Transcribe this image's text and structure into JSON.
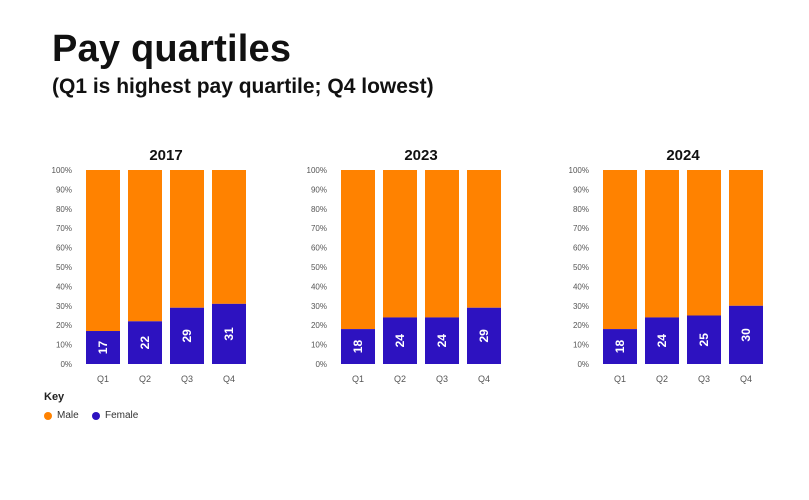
{
  "title": "Pay quartiles",
  "subtitle": "(Q1 is highest pay quartile; Q4 lowest)",
  "colors": {
    "male": "#FF8200",
    "female": "#2D12C0",
    "axis_text": "#555555"
  },
  "legend": {
    "title": "Key",
    "male_label": "Male",
    "female_label": "Female"
  },
  "chart_data": [
    {
      "type": "bar",
      "stacked": true,
      "title": "2017",
      "categories": [
        "Q1",
        "Q2",
        "Q3",
        "Q4"
      ],
      "series": [
        {
          "name": "Female",
          "values": [
            17,
            22,
            29,
            31
          ]
        },
        {
          "name": "Male",
          "values": [
            83,
            78,
            71,
            69
          ]
        }
      ],
      "ylim": [
        0,
        100
      ],
      "yticks": [
        "0%",
        "10%",
        "20%",
        "30%",
        "40%",
        "50%",
        "60%",
        "70%",
        "80%",
        "90%",
        "100%"
      ]
    },
    {
      "type": "bar",
      "stacked": true,
      "title": "2023",
      "categories": [
        "Q1",
        "Q2",
        "Q3",
        "Q4"
      ],
      "series": [
        {
          "name": "Female",
          "values": [
            18,
            24,
            24,
            29
          ]
        },
        {
          "name": "Male",
          "values": [
            82,
            76,
            76,
            71
          ]
        }
      ],
      "ylim": [
        0,
        100
      ],
      "yticks": [
        "0%",
        "10%",
        "20%",
        "30%",
        "40%",
        "50%",
        "60%",
        "70%",
        "80%",
        "90%",
        "100%"
      ]
    },
    {
      "type": "bar",
      "stacked": true,
      "title": "2024",
      "categories": [
        "Q1",
        "Q2",
        "Q3",
        "Q4"
      ],
      "series": [
        {
          "name": "Female",
          "values": [
            18,
            24,
            25,
            30
          ]
        },
        {
          "name": "Male",
          "values": [
            82,
            76,
            75,
            70
          ]
        }
      ],
      "ylim": [
        0,
        100
      ],
      "yticks": [
        "0%",
        "10%",
        "20%",
        "30%",
        "40%",
        "50%",
        "60%",
        "70%",
        "80%",
        "90%",
        "100%"
      ]
    }
  ]
}
